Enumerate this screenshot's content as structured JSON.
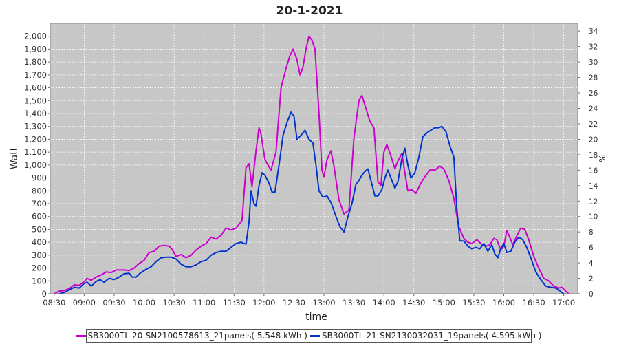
{
  "chart_data": {
    "type": "line",
    "title": "20-1-2021",
    "xlabel": "time",
    "ylabel": "Watt",
    "y2label": "%",
    "xticks": [
      "08:30",
      "09:00",
      "09:30",
      "10:00",
      "10:30",
      "11:00",
      "11:30",
      "12:00",
      "12:30",
      "13:00",
      "13:30",
      "14:00",
      "14:30",
      "15:00",
      "15:30",
      "16:00",
      "16:30",
      "17:00"
    ],
    "yticks": [
      "0",
      "100",
      "200",
      "300",
      "400",
      "500",
      "600",
      "700",
      "800",
      "900",
      "1,000",
      "1,100",
      "1,200",
      "1,300",
      "1,400",
      "1,500",
      "1,600",
      "1,700",
      "1,800",
      "1,900",
      "2,000"
    ],
    "y2ticks": [
      "0",
      "2",
      "4",
      "6",
      "8",
      "10",
      "12",
      "14",
      "16",
      "18",
      "20",
      "22",
      "24",
      "26",
      "28",
      "30",
      "32",
      "34"
    ],
    "xlim": [
      "08:26",
      "17:14"
    ],
    "ylim": [
      0,
      2100
    ],
    "y2lim": [
      0,
      35
    ],
    "grid": true,
    "legend_position": "bottom",
    "series": [
      {
        "name": "SB3000TL-20-SN2100578613_21panels( 5.548 kWh )",
        "color": "#cc00cc",
        "points": [
          [
            "08:30",
            0
          ],
          [
            "08:35",
            20
          ],
          [
            "08:40",
            25
          ],
          [
            "08:45",
            40
          ],
          [
            "08:50",
            70
          ],
          [
            "08:55",
            65
          ],
          [
            "09:00",
            95
          ],
          [
            "09:03",
            120
          ],
          [
            "09:07",
            105
          ],
          [
            "09:12",
            130
          ],
          [
            "09:18",
            150
          ],
          [
            "09:22",
            170
          ],
          [
            "09:27",
            165
          ],
          [
            "09:32",
            185
          ],
          [
            "09:40",
            185
          ],
          [
            "09:45",
            180
          ],
          [
            "09:50",
            200
          ],
          [
            "09:55",
            235
          ],
          [
            "10:00",
            260
          ],
          [
            "10:05",
            320
          ],
          [
            "10:10",
            330
          ],
          [
            "10:15",
            370
          ],
          [
            "10:20",
            375
          ],
          [
            "10:25",
            370
          ],
          [
            "10:28",
            345
          ],
          [
            "10:32",
            290
          ],
          [
            "10:37",
            305
          ],
          [
            "10:42",
            280
          ],
          [
            "10:47",
            300
          ],
          [
            "10:52",
            340
          ],
          [
            "10:57",
            370
          ],
          [
            "11:02",
            390
          ],
          [
            "11:07",
            440
          ],
          [
            "11:12",
            425
          ],
          [
            "11:17",
            455
          ],
          [
            "11:22",
            510
          ],
          [
            "11:27",
            495
          ],
          [
            "11:32",
            510
          ],
          [
            "11:38",
            570
          ],
          [
            "11:42",
            980
          ],
          [
            "11:45",
            1010
          ],
          [
            "11:48",
            830
          ],
          [
            "11:52",
            1110
          ],
          [
            "11:55",
            1290
          ],
          [
            "11:57",
            1240
          ],
          [
            "12:01",
            1040
          ],
          [
            "12:07",
            960
          ],
          [
            "12:12",
            1100
          ],
          [
            "12:17",
            1600
          ],
          [
            "12:22",
            1750
          ],
          [
            "12:26",
            1850
          ],
          [
            "12:29",
            1900
          ],
          [
            "12:33",
            1820
          ],
          [
            "12:36",
            1700
          ],
          [
            "12:39",
            1760
          ],
          [
            "12:42",
            1900
          ],
          [
            "12:45",
            2000
          ],
          [
            "12:48",
            1970
          ],
          [
            "12:51",
            1900
          ],
          [
            "12:55",
            1400
          ],
          [
            "12:58",
            960
          ],
          [
            "13:00",
            910
          ],
          [
            "13:03",
            1040
          ],
          [
            "13:07",
            1110
          ],
          [
            "13:10",
            990
          ],
          [
            "13:15",
            730
          ],
          [
            "13:20",
            620
          ],
          [
            "13:25",
            650
          ],
          [
            "13:30",
            1210
          ],
          [
            "13:35",
            1500
          ],
          [
            "13:38",
            1540
          ],
          [
            "13:42",
            1440
          ],
          [
            "13:46",
            1340
          ],
          [
            "13:50",
            1290
          ],
          [
            "13:54",
            870
          ],
          [
            "13:57",
            840
          ],
          [
            "14:00",
            1100
          ],
          [
            "14:03",
            1160
          ],
          [
            "14:07",
            1070
          ],
          [
            "14:11",
            970
          ],
          [
            "14:14",
            1030
          ],
          [
            "14:18",
            1090
          ],
          [
            "14:21",
            940
          ],
          [
            "14:24",
            800
          ],
          [
            "14:28",
            810
          ],
          [
            "14:32",
            780
          ],
          [
            "14:37",
            860
          ],
          [
            "14:42",
            920
          ],
          [
            "14:46",
            960
          ],
          [
            "14:51",
            960
          ],
          [
            "14:56",
            990
          ],
          [
            "15:00",
            970
          ],
          [
            "15:05",
            880
          ],
          [
            "15:10",
            740
          ],
          [
            "15:15",
            520
          ],
          [
            "15:20",
            430
          ],
          [
            "15:24",
            400
          ],
          [
            "15:28",
            390
          ],
          [
            "15:33",
            420
          ],
          [
            "15:37",
            390
          ],
          [
            "15:42",
            370
          ],
          [
            "15:46",
            380
          ],
          [
            "15:50",
            430
          ],
          [
            "15:53",
            420
          ],
          [
            "15:57",
            340
          ],
          [
            "16:00",
            370
          ],
          [
            "16:03",
            490
          ],
          [
            "16:06",
            440
          ],
          [
            "16:09",
            380
          ],
          [
            "16:13",
            450
          ],
          [
            "16:17",
            510
          ],
          [
            "16:21",
            500
          ],
          [
            "16:25",
            420
          ],
          [
            "16:30",
            290
          ],
          [
            "16:35",
            200
          ],
          [
            "16:40",
            120
          ],
          [
            "16:45",
            100
          ],
          [
            "16:50",
            60
          ],
          [
            "16:55",
            45
          ],
          [
            "16:58",
            50
          ],
          [
            "17:02",
            20
          ],
          [
            "17:05",
            0
          ]
        ]
      },
      {
        "name": "SB3000TL-21-SN2130032031_19panels( 4.595 kWh )",
        "color": "#0033cc",
        "points": [
          [
            "08:35",
            0
          ],
          [
            "08:40",
            10
          ],
          [
            "08:45",
            30
          ],
          [
            "08:50",
            50
          ],
          [
            "08:55",
            45
          ],
          [
            "09:00",
            80
          ],
          [
            "09:03",
            90
          ],
          [
            "09:07",
            60
          ],
          [
            "09:12",
            95
          ],
          [
            "09:16",
            110
          ],
          [
            "09:20",
            90
          ],
          [
            "09:25",
            120
          ],
          [
            "09:30",
            110
          ],
          [
            "09:35",
            130
          ],
          [
            "09:40",
            155
          ],
          [
            "09:45",
            160
          ],
          [
            "09:48",
            130
          ],
          [
            "09:52",
            130
          ],
          [
            "09:56",
            160
          ],
          [
            "10:02",
            190
          ],
          [
            "10:07",
            210
          ],
          [
            "10:12",
            250
          ],
          [
            "10:17",
            280
          ],
          [
            "10:22",
            285
          ],
          [
            "10:27",
            285
          ],
          [
            "10:32",
            270
          ],
          [
            "10:37",
            230
          ],
          [
            "10:42",
            210
          ],
          [
            "10:47",
            210
          ],
          [
            "10:52",
            225
          ],
          [
            "10:57",
            250
          ],
          [
            "11:02",
            260
          ],
          [
            "11:07",
            300
          ],
          [
            "11:12",
            320
          ],
          [
            "11:17",
            330
          ],
          [
            "11:22",
            330
          ],
          [
            "11:27",
            360
          ],
          [
            "11:32",
            390
          ],
          [
            "11:37",
            400
          ],
          [
            "11:42",
            385
          ],
          [
            "11:45",
            560
          ],
          [
            "11:47",
            800
          ],
          [
            "11:50",
            700
          ],
          [
            "11:52",
            680
          ],
          [
            "11:55",
            840
          ],
          [
            "11:58",
            940
          ],
          [
            "12:01",
            920
          ],
          [
            "12:05",
            860
          ],
          [
            "12:08",
            790
          ],
          [
            "12:11",
            790
          ],
          [
            "12:15",
            1000
          ],
          [
            "12:19",
            1230
          ],
          [
            "12:23",
            1330
          ],
          [
            "12:27",
            1410
          ],
          [
            "12:30",
            1380
          ],
          [
            "12:33",
            1200
          ],
          [
            "12:37",
            1230
          ],
          [
            "12:41",
            1270
          ],
          [
            "12:45",
            1200
          ],
          [
            "12:49",
            1170
          ],
          [
            "12:52",
            1000
          ],
          [
            "12:55",
            800
          ],
          [
            "12:59",
            750
          ],
          [
            "13:03",
            760
          ],
          [
            "13:07",
            710
          ],
          [
            "13:12",
            600
          ],
          [
            "13:16",
            520
          ],
          [
            "13:20",
            480
          ],
          [
            "13:24",
            600
          ],
          [
            "13:28",
            700
          ],
          [
            "13:32",
            850
          ],
          [
            "13:35",
            880
          ],
          [
            "13:38",
            920
          ],
          [
            "13:41",
            950
          ],
          [
            "13:44",
            970
          ],
          [
            "13:47",
            880
          ],
          [
            "13:51",
            760
          ],
          [
            "13:54",
            760
          ],
          [
            "13:58",
            810
          ],
          [
            "14:01",
            900
          ],
          [
            "14:04",
            960
          ],
          [
            "14:07",
            900
          ],
          [
            "14:11",
            820
          ],
          [
            "14:14",
            870
          ],
          [
            "14:18",
            1050
          ],
          [
            "14:21",
            1130
          ],
          [
            "14:24",
            1000
          ],
          [
            "14:27",
            900
          ],
          [
            "14:31",
            940
          ],
          [
            "14:35",
            1060
          ],
          [
            "14:39",
            1220
          ],
          [
            "14:43",
            1250
          ],
          [
            "14:47",
            1270
          ],
          [
            "14:51",
            1290
          ],
          [
            "14:55",
            1290
          ],
          [
            "14:58",
            1300
          ],
          [
            "15:02",
            1260
          ],
          [
            "15:06",
            1150
          ],
          [
            "15:10",
            1060
          ],
          [
            "15:13",
            660
          ],
          [
            "15:16",
            410
          ],
          [
            "15:20",
            410
          ],
          [
            "15:24",
            370
          ],
          [
            "15:28",
            350
          ],
          [
            "15:32",
            360
          ],
          [
            "15:36",
            350
          ],
          [
            "15:40",
            390
          ],
          [
            "15:44",
            330
          ],
          [
            "15:48",
            380
          ],
          [
            "15:51",
            310
          ],
          [
            "15:54",
            280
          ],
          [
            "15:57",
            350
          ],
          [
            "16:00",
            390
          ],
          [
            "16:03",
            320
          ],
          [
            "16:07",
            330
          ],
          [
            "16:11",
            400
          ],
          [
            "16:15",
            440
          ],
          [
            "16:19",
            420
          ],
          [
            "16:23",
            360
          ],
          [
            "16:27",
            280
          ],
          [
            "16:32",
            170
          ],
          [
            "16:37",
            110
          ],
          [
            "16:42",
            60
          ],
          [
            "16:47",
            50
          ],
          [
            "16:52",
            45
          ],
          [
            "16:55",
            30
          ],
          [
            "16:58",
            10
          ],
          [
            "17:00",
            0
          ]
        ]
      }
    ]
  }
}
